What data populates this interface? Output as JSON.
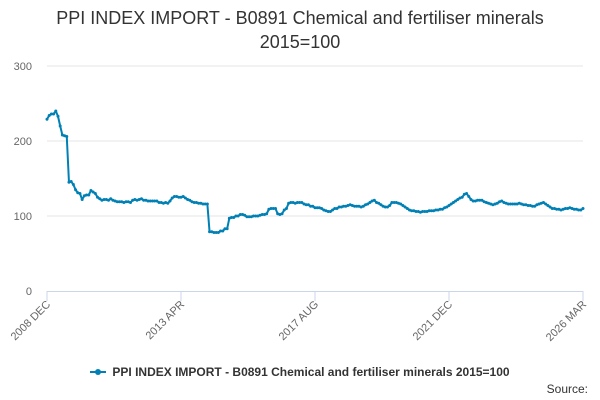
{
  "chart_data": {
    "type": "line",
    "title_line1": "PPI INDEX IMPORT - B0891 Chemical and fertiliser minerals",
    "title_line2": "2015=100",
    "xlabel": "",
    "ylabel": "",
    "ylim": [
      0,
      300
    ],
    "yticks": [
      0,
      100,
      200,
      300
    ],
    "xticks": [
      "2008 DEC",
      "2013 APR",
      "2017 AUG",
      "2021 DEC",
      "2026 MAR"
    ],
    "grid": "horizontal",
    "legend_position": "bottom",
    "colors": {
      "series": "#0080b4",
      "grid": "#e6e6e6",
      "axis": "#ccd6eb"
    },
    "series": [
      {
        "name": "PPI INDEX IMPORT - B0891 Chemical and fertiliser minerals 2015=100",
        "values": [
          229,
          234,
          236,
          236,
          240,
          233,
          220,
          208,
          207,
          206,
          145,
          146,
          142,
          135,
          131,
          130,
          122,
          127,
          128,
          128,
          134,
          132,
          130,
          125,
          123,
          121,
          122,
          122,
          121,
          123,
          121,
          120,
          119,
          119,
          119,
          118,
          119,
          119,
          118,
          121,
          122,
          121,
          122,
          123,
          121,
          121,
          120,
          120,
          120,
          120,
          120,
          118,
          118,
          117,
          118,
          117,
          120,
          124,
          126,
          126,
          125,
          125,
          126,
          124,
          122,
          121,
          119,
          118,
          118,
          117,
          117,
          116,
          116,
          116,
          79,
          79,
          78,
          78,
          78,
          80,
          80,
          83,
          83,
          97,
          98,
          98,
          100,
          100,
          102,
          102,
          101,
          99,
          99,
          99,
          100,
          100,
          100,
          101,
          102,
          102,
          103,
          109,
          110,
          110,
          110,
          103,
          102,
          103,
          108,
          110,
          117,
          118,
          118,
          117,
          118,
          118,
          118,
          116,
          115,
          115,
          113,
          113,
          111,
          111,
          111,
          110,
          108,
          107,
          106,
          106,
          108,
          110,
          110,
          112,
          112,
          113,
          113,
          114,
          115,
          114,
          113,
          113,
          113,
          112,
          113,
          115,
          116,
          118,
          120,
          121,
          118,
          117,
          115,
          113,
          112,
          112,
          114,
          118,
          118,
          118,
          117,
          116,
          114,
          112,
          110,
          108,
          107,
          107,
          106,
          106,
          105,
          106,
          106,
          106,
          107,
          107,
          107,
          108,
          108,
          109,
          109,
          111,
          112,
          114,
          116,
          118,
          120,
          122,
          124,
          125,
          129,
          130,
          126,
          122,
          120,
          120,
          121,
          121,
          121,
          119,
          118,
          117,
          116,
          115,
          116,
          117,
          119,
          120,
          118,
          117,
          116,
          116,
          116,
          116,
          116,
          117,
          116,
          115,
          115,
          114,
          114,
          113,
          113,
          115,
          116,
          117,
          118,
          116,
          114,
          112,
          110,
          110,
          109,
          109,
          108,
          109,
          110,
          110,
          111,
          110,
          109,
          109,
          108,
          108,
          110
        ]
      }
    ]
  },
  "source_label": "Source:"
}
